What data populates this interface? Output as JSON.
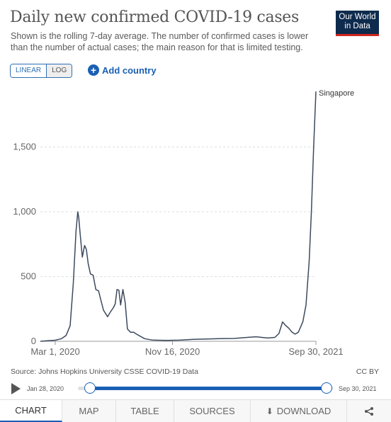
{
  "header": {
    "title": "Daily new confirmed COVID-19 cases",
    "subtitle": "Shown is the rolling 7-day average. The number of confirmed cases is lower than the number of actual cases; the main reason for that is limited testing."
  },
  "logo": {
    "line1": "Our World",
    "line2": "in Data"
  },
  "controls": {
    "linear_label": "LINEAR",
    "log_label": "LOG",
    "add_country_label": "Add country"
  },
  "chart_data": {
    "type": "line",
    "title": "Daily new confirmed COVID-19 cases",
    "xlabel": "",
    "ylabel": "",
    "ylim": [
      0,
      1950
    ],
    "xlim": [
      "2020-01-28",
      "2021-09-30"
    ],
    "yticks": [
      0,
      500,
      1000,
      1500
    ],
    "ytick_labels": [
      "0",
      "500",
      "1,000",
      "1,500"
    ],
    "xticks": [
      "2020-03-01",
      "2020-11-16",
      "2021-09-30"
    ],
    "xtick_labels": [
      "Mar 1, 2020",
      "Nov 16, 2020",
      "Sep 30, 2021"
    ],
    "grid": "horizontal dashed",
    "series": [
      {
        "name": "Singapore",
        "color": "#3c4a5e",
        "points": [
          [
            "2020-01-28",
            0
          ],
          [
            "2020-02-15",
            5
          ],
          [
            "2020-03-01",
            8
          ],
          [
            "2020-03-15",
            20
          ],
          [
            "2020-03-25",
            45
          ],
          [
            "2020-04-03",
            120
          ],
          [
            "2020-04-10",
            450
          ],
          [
            "2020-04-16",
            850
          ],
          [
            "2020-04-20",
            1000
          ],
          [
            "2020-04-22",
            960
          ],
          [
            "2020-04-25",
            840
          ],
          [
            "2020-04-30",
            650
          ],
          [
            "2020-05-05",
            740
          ],
          [
            "2020-05-09",
            710
          ],
          [
            "2020-05-13",
            600
          ],
          [
            "2020-05-18",
            520
          ],
          [
            "2020-05-24",
            510
          ],
          [
            "2020-05-30",
            400
          ],
          [
            "2020-06-05",
            390
          ],
          [
            "2020-06-10",
            320
          ],
          [
            "2020-06-16",
            240
          ],
          [
            "2020-06-25",
            190
          ],
          [
            "2020-07-02",
            230
          ],
          [
            "2020-07-08",
            260
          ],
          [
            "2020-07-12",
            290
          ],
          [
            "2020-07-16",
            400
          ],
          [
            "2020-07-20",
            395
          ],
          [
            "2020-07-24",
            280
          ],
          [
            "2020-07-29",
            400
          ],
          [
            "2020-08-03",
            300
          ],
          [
            "2020-08-08",
            95
          ],
          [
            "2020-08-15",
            70
          ],
          [
            "2020-08-22",
            70
          ],
          [
            "2020-08-28",
            55
          ],
          [
            "2020-09-05",
            40
          ],
          [
            "2020-09-15",
            20
          ],
          [
            "2020-10-01",
            10
          ],
          [
            "2020-11-01",
            7
          ],
          [
            "2020-12-01",
            9
          ],
          [
            "2021-01-01",
            15
          ],
          [
            "2021-02-01",
            18
          ],
          [
            "2021-03-01",
            20
          ],
          [
            "2021-04-01",
            22
          ],
          [
            "2021-05-01",
            30
          ],
          [
            "2021-05-20",
            35
          ],
          [
            "2021-06-15",
            25
          ],
          [
            "2021-07-01",
            30
          ],
          [
            "2021-07-10",
            60
          ],
          [
            "2021-07-18",
            150
          ],
          [
            "2021-07-24",
            125
          ],
          [
            "2021-08-01",
            100
          ],
          [
            "2021-08-08",
            70
          ],
          [
            "2021-08-15",
            55
          ],
          [
            "2021-08-22",
            70
          ],
          [
            "2021-09-01",
            150
          ],
          [
            "2021-09-08",
            280
          ],
          [
            "2021-09-15",
            620
          ],
          [
            "2021-09-20",
            1000
          ],
          [
            "2021-09-25",
            1500
          ],
          [
            "2021-09-30",
            1930
          ]
        ]
      }
    ]
  },
  "source": {
    "text": "Source: Johns Hopkins University CSSE COVID-19 Data",
    "license": "CC BY"
  },
  "timeline": {
    "start_label": "Jan 28, 2020",
    "end_label": "Sep 30, 2021",
    "start_value": 0.0,
    "end_value": 1.0
  },
  "tabs": {
    "chart": "CHART",
    "map": "MAP",
    "table": "TABLE",
    "sources": "SOURCES",
    "download": "DOWNLOAD"
  }
}
